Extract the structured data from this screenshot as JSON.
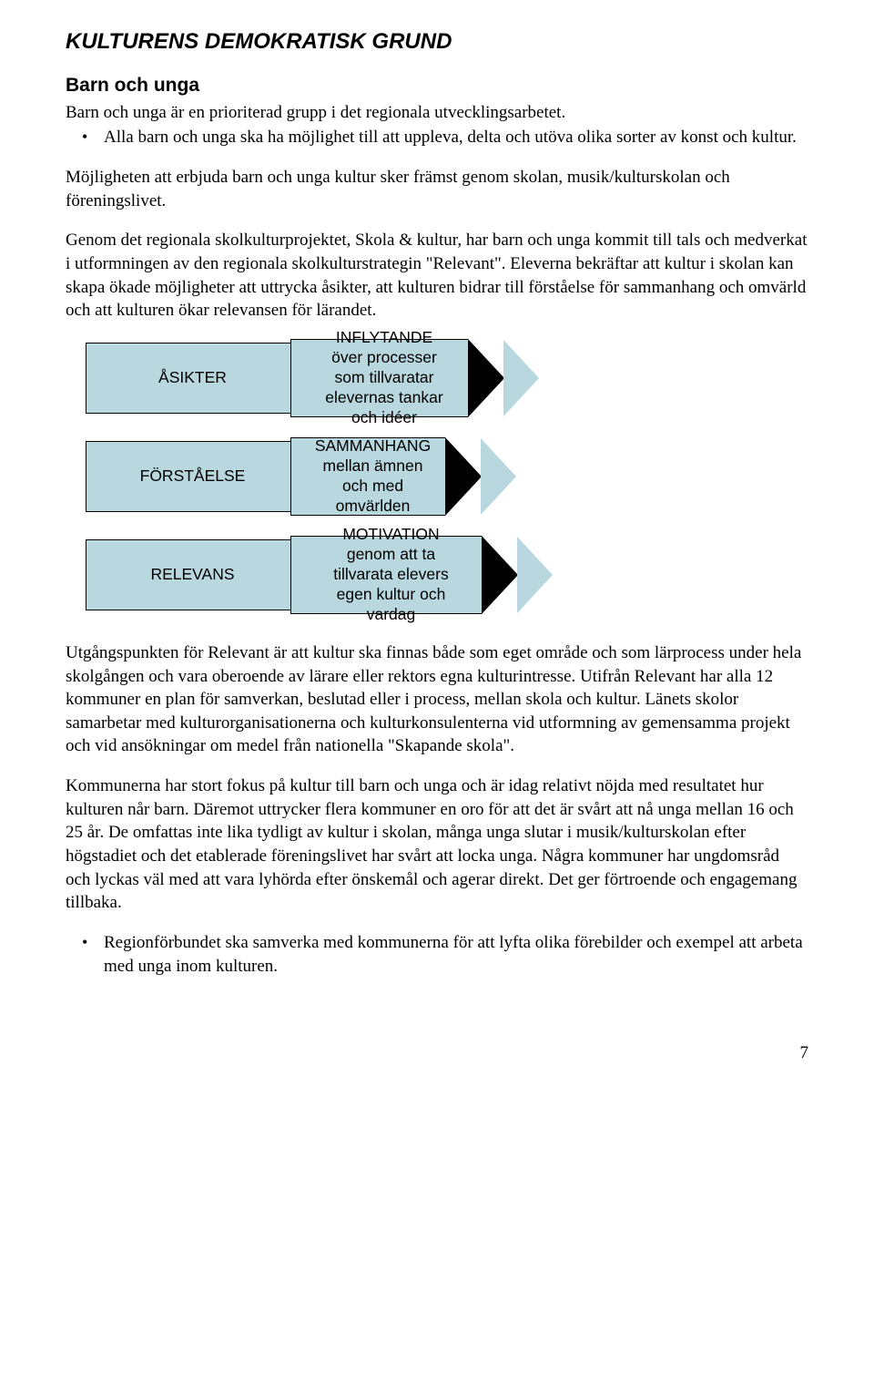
{
  "h1": "KULTURENS DEMOKRATISK GRUND",
  "h2": "Barn och unga",
  "intro": "Barn och unga är en prioriterad grupp i det regionala utvecklingsarbetet.",
  "bullets1": [
    "Alla barn och unga ska ha möjlighet till att uppleva, delta och utöva olika sorter av konst och kultur."
  ],
  "para1": "Möjligheten att erbjuda barn och unga kultur sker främst genom skolan, musik/kulturskolan och föreningslivet.",
  "para2": "Genom det regionala skolkulturprojektet, Skola & kultur, har barn och unga kommit till tals och medverkat i utformningen av den regionala skolkulturstrategin \"Relevant\". Eleverna bekräftar att kultur i skolan kan skapa ökade möjligheter att uttrycka åsikter, att kulturen bidrar till förståelse för sammanhang och omvärld och att kulturen ökar relevansen för lärandet.",
  "diagram": {
    "fill": "#b8d7de",
    "border": "#000000",
    "rows": [
      {
        "left": "ÅSIKTER",
        "right_title": "INFLYTANDE",
        "right_body": "över processer som tillvaratar elevernas tankar och idéer",
        "arrow_body_w": 195,
        "head_w": 40
      },
      {
        "left": "FÖRSTÅELSE",
        "right_title": "SAMMANHANG",
        "right_body": "mellan ämnen och med omvärlden",
        "arrow_body_w": 170,
        "head_w": 40
      },
      {
        "left": "RELEVANS",
        "right_title": "MOTIVATION",
        "right_body": "genom att ta tillvarata elevers egen kultur och vardag",
        "arrow_body_w": 210,
        "head_w": 40
      }
    ]
  },
  "para3": "Utgångspunkten för Relevant är att kultur ska finnas både som eget område och som lärprocess under hela skolgången och vara oberoende av lärare eller rektors egna kulturintresse. Utifrån Relevant har alla 12 kommuner en plan för samverkan, beslutad eller i process, mellan skola och kultur. Länets skolor samarbetar med kulturorganisationerna och kulturkonsulenterna vid utformning av gemensamma projekt och vid ansökningar om medel från nationella \"Skapande skola\".",
  "para4": "Kommunerna har stort fokus på kultur till barn och unga och är idag relativt nöjda med resultatet hur kulturen når barn. Däremot uttrycker flera kommuner en oro för att det är svårt att nå unga mellan 16 och 25 år. De omfattas inte lika tydligt av kultur i skolan, många unga slutar i musik/kulturskolan efter högstadiet och det etablerade föreningslivet har svårt att locka unga. Några kommuner har ungdomsråd och lyckas väl med att vara lyhörda efter önskemål och agerar direkt. Det ger förtroende och engagemang tillbaka.",
  "bullets2": [
    "Regionförbundet ska samverka med kommunerna för att lyfta olika förebilder och exempel att arbeta med unga inom kulturen."
  ],
  "page_number": "7"
}
